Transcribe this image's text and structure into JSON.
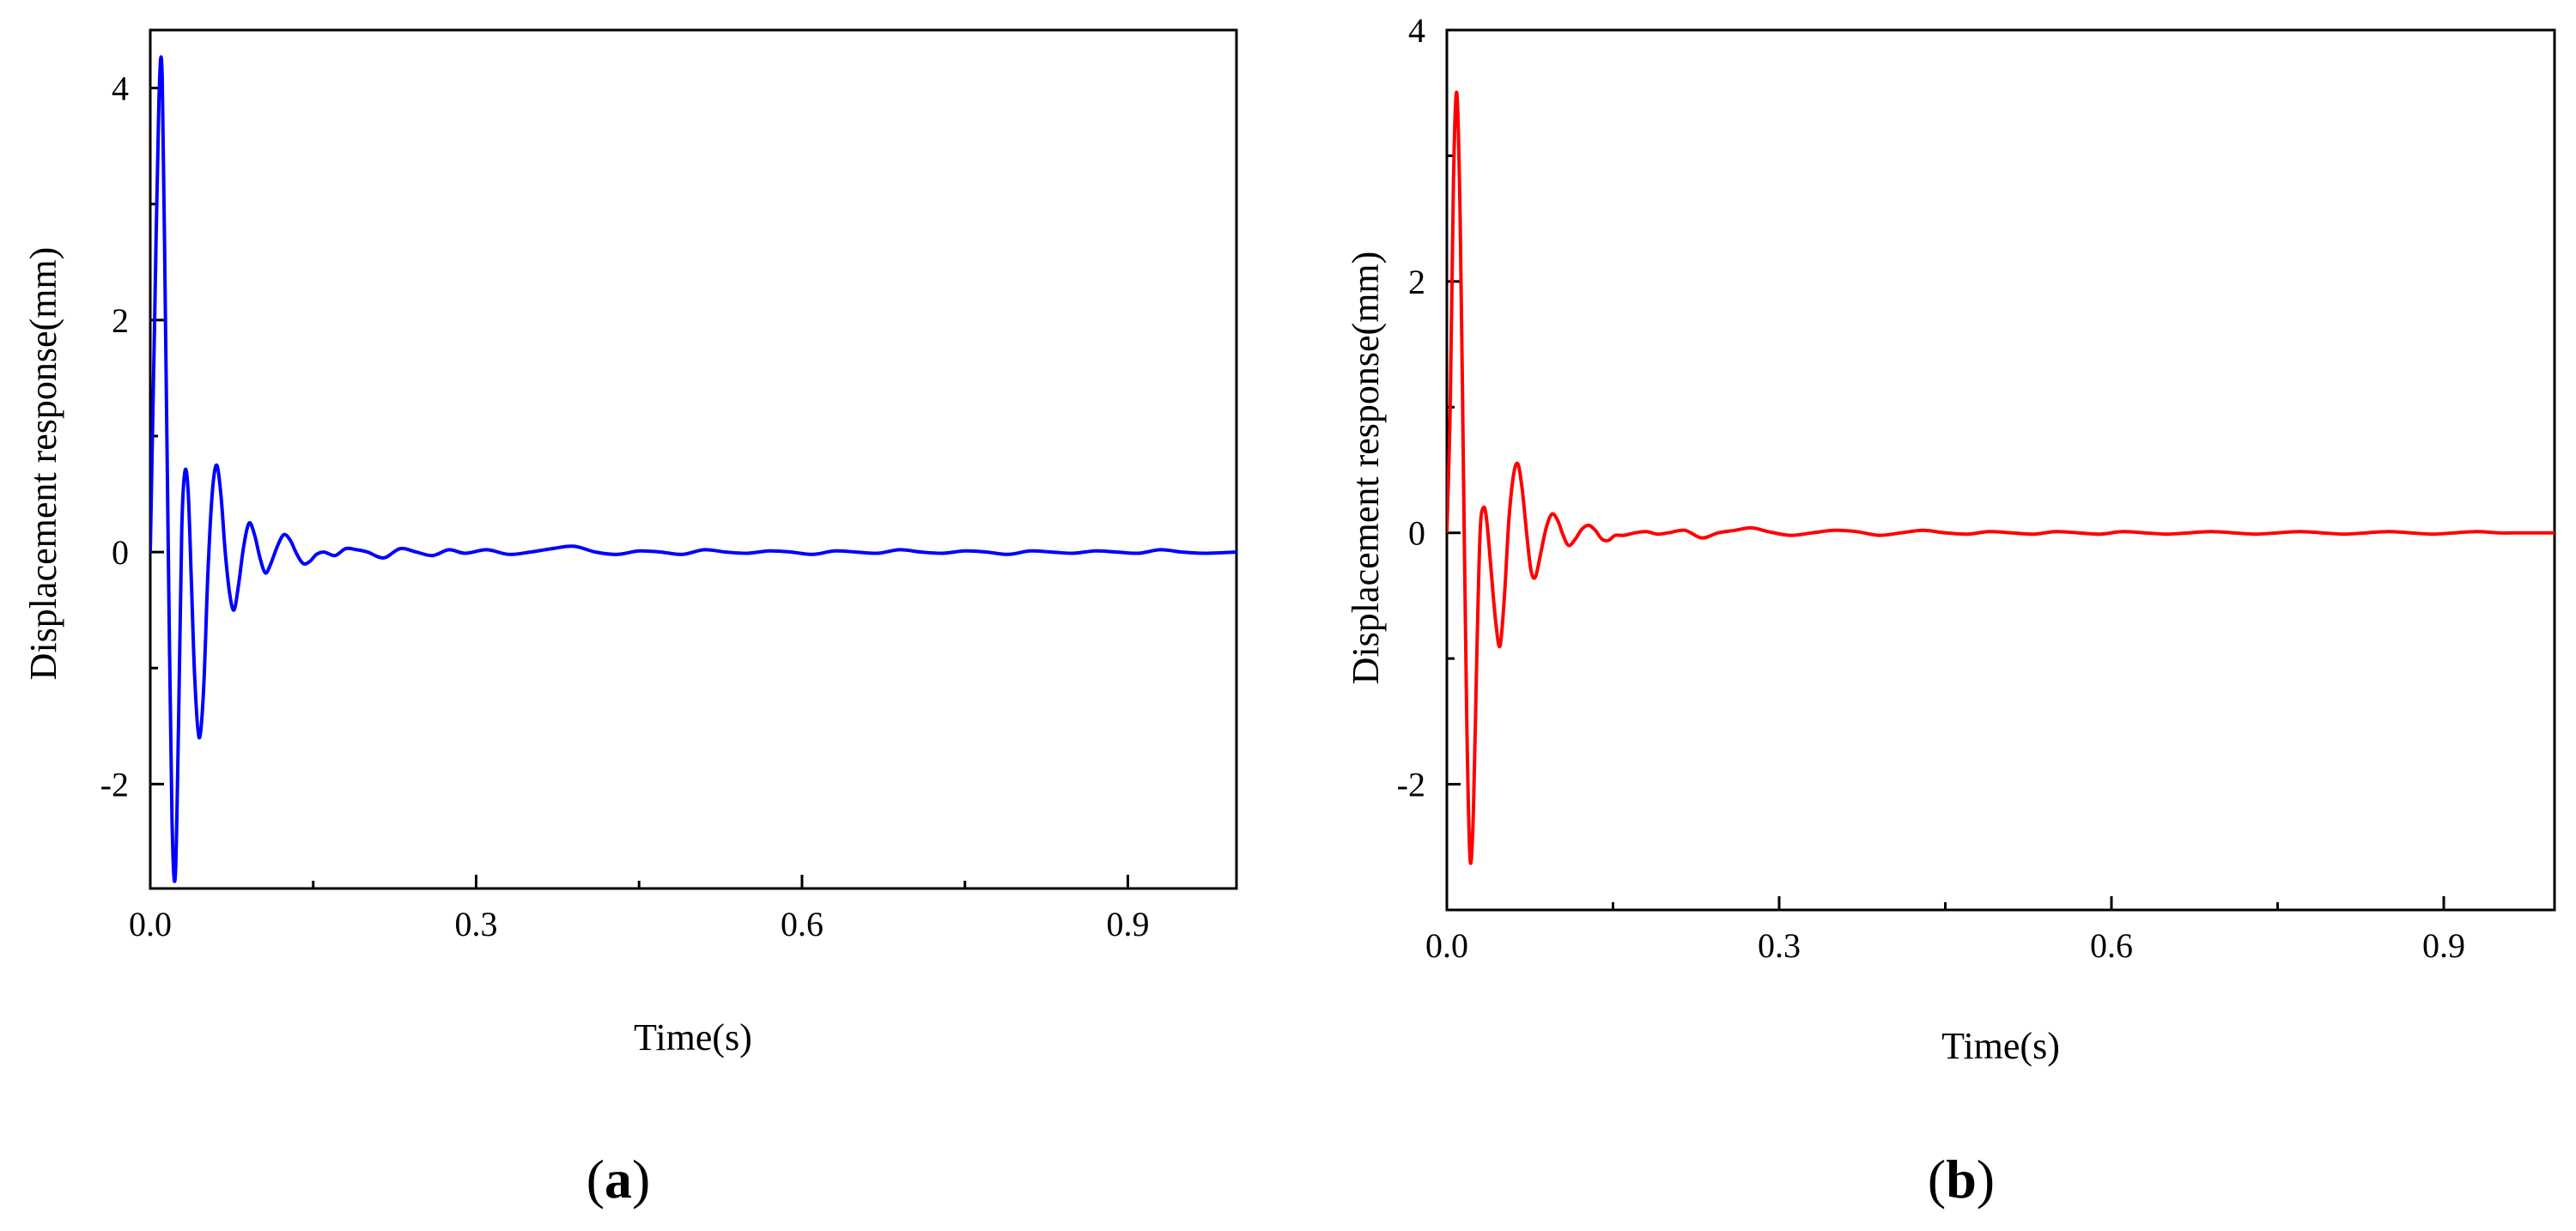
{
  "chart_data": [
    {
      "type": "line",
      "panel_label": "a",
      "xlabel": "Time(s)",
      "ylabel": "Displacement response(mm)",
      "xlim": [
        0,
        1.0
      ],
      "ylim": [
        -2.9,
        4.5
      ],
      "xticks": [
        0.0,
        0.3,
        0.6,
        0.9
      ],
      "xtick_labels": [
        "0.0",
        "0.3",
        "0.6",
        "0.9"
      ],
      "yticks": [
        -2,
        0,
        2,
        4
      ],
      "ytick_labels": [
        "-2",
        "0",
        "2",
        "4"
      ],
      "grid": false,
      "legend": "none",
      "series": [
        {
          "color": "#0000ff",
          "x": [
            0,
            0.004,
            0.008,
            0.011,
            0.014,
            0.017,
            0.02,
            0.023,
            0.026,
            0.029,
            0.032,
            0.035,
            0.038,
            0.041,
            0.045,
            0.049,
            0.053,
            0.057,
            0.061,
            0.065,
            0.069,
            0.073,
            0.077,
            0.081,
            0.086,
            0.091,
            0.096,
            0.101,
            0.106,
            0.111,
            0.117,
            0.123,
            0.129,
            0.135,
            0.141,
            0.147,
            0.153,
            0.16,
            0.17,
            0.18,
            0.19,
            0.2,
            0.215,
            0.23,
            0.245,
            0.26,
            0.275,
            0.29,
            0.31,
            0.33,
            0.35,
            0.37,
            0.39,
            0.41,
            0.43,
            0.45,
            0.47,
            0.49,
            0.51,
            0.53,
            0.55,
            0.57,
            0.59,
            0.61,
            0.63,
            0.65,
            0.67,
            0.69,
            0.71,
            0.73,
            0.75,
            0.77,
            0.79,
            0.81,
            0.83,
            0.85,
            0.87,
            0.89,
            0.91,
            0.93,
            0.95,
            0.97,
            1.0
          ],
          "y": [
            0,
            2.0,
            3.9,
            4.1,
            2.0,
            -0.3,
            -2.3,
            -2.8,
            -1.5,
            0.2,
            0.7,
            0.5,
            -0.3,
            -1.1,
            -1.6,
            -1.2,
            -0.2,
            0.5,
            0.75,
            0.5,
            0.0,
            -0.35,
            -0.5,
            -0.3,
            0.05,
            0.25,
            0.15,
            -0.05,
            -0.18,
            -0.1,
            0.05,
            0.15,
            0.1,
            -0.02,
            -0.1,
            -0.08,
            -0.02,
            0.0,
            -0.03,
            0.03,
            0.02,
            0.0,
            -0.05,
            0.03,
            0.0,
            -0.03,
            0.02,
            -0.01,
            0.02,
            -0.02,
            0.0,
            0.03,
            0.05,
            0.0,
            -0.02,
            0.01,
            0.0,
            -0.02,
            0.02,
            0.0,
            -0.01,
            0.01,
            0.0,
            -0.02,
            0.01,
            0.0,
            -0.01,
            0.02,
            0.0,
            -0.01,
            0.01,
            0.0,
            -0.02,
            0.01,
            0.0,
            -0.01,
            0.01,
            0.0,
            -0.01,
            0.02,
            0.0,
            -0.01,
            0.0
          ]
        }
      ]
    },
    {
      "type": "line",
      "panel_label": "b",
      "xlabel": "Time(s)",
      "ylabel": "Displacement response(mm)",
      "xlim": [
        0,
        1.0
      ],
      "ylim": [
        -3.0,
        4.0
      ],
      "xticks": [
        0.0,
        0.3,
        0.6,
        0.9
      ],
      "xtick_labels": [
        "0.0",
        "0.3",
        "0.6",
        "0.9"
      ],
      "yticks": [
        -2,
        0,
        2,
        4
      ],
      "ytick_labels": [
        "-2",
        "0",
        "2",
        "4"
      ],
      "grid": false,
      "legend": "none",
      "series": [
        {
          "color": "#ff0000",
          "x": [
            0,
            0.003,
            0.006,
            0.009,
            0.012,
            0.015,
            0.018,
            0.021,
            0.024,
            0.027,
            0.03,
            0.033,
            0.036,
            0.04,
            0.044,
            0.048,
            0.052,
            0.056,
            0.06,
            0.064,
            0.068,
            0.072,
            0.076,
            0.08,
            0.085,
            0.09,
            0.095,
            0.1,
            0.105,
            0.11,
            0.116,
            0.122,
            0.128,
            0.134,
            0.14,
            0.146,
            0.152,
            0.16,
            0.17,
            0.18,
            0.19,
            0.2,
            0.215,
            0.23,
            0.245,
            0.26,
            0.275,
            0.29,
            0.31,
            0.33,
            0.35,
            0.37,
            0.39,
            0.41,
            0.43,
            0.45,
            0.47,
            0.49,
            0.51,
            0.53,
            0.55,
            0.57,
            0.59,
            0.61,
            0.63,
            0.65,
            0.67,
            0.69,
            0.71,
            0.73,
            0.75,
            0.77,
            0.79,
            0.81,
            0.83,
            0.85,
            0.87,
            0.89,
            0.91,
            0.93,
            0.95,
            0.97,
            1.0
          ],
          "y": [
            0,
            1.0,
            2.8,
            3.5,
            2.5,
            0.5,
            -1.5,
            -2.6,
            -2.2,
            -1.0,
            0.0,
            0.2,
            0.1,
            -0.3,
            -0.7,
            -0.9,
            -0.5,
            0.1,
            0.45,
            0.55,
            0.35,
            0.0,
            -0.3,
            -0.35,
            -0.15,
            0.05,
            0.15,
            0.1,
            -0.02,
            -0.1,
            -0.05,
            0.03,
            0.06,
            0.02,
            -0.05,
            -0.06,
            -0.02,
            -0.02,
            0.0,
            0.01,
            -0.01,
            0.0,
            0.02,
            -0.04,
            0.0,
            0.02,
            0.04,
            0.01,
            -0.02,
            0.0,
            0.02,
            0.01,
            -0.02,
            0.0,
            0.02,
            0.0,
            -0.01,
            0.01,
            0.0,
            -0.01,
            0.01,
            0.0,
            -0.01,
            0.01,
            0.0,
            -0.01,
            0.0,
            0.01,
            0.0,
            -0.01,
            0.0,
            0.01,
            0.0,
            -0.01,
            0.0,
            0.01,
            0.0,
            -0.01,
            0.0,
            0.01,
            0.0,
            0.0,
            0.0
          ]
        }
      ]
    }
  ]
}
